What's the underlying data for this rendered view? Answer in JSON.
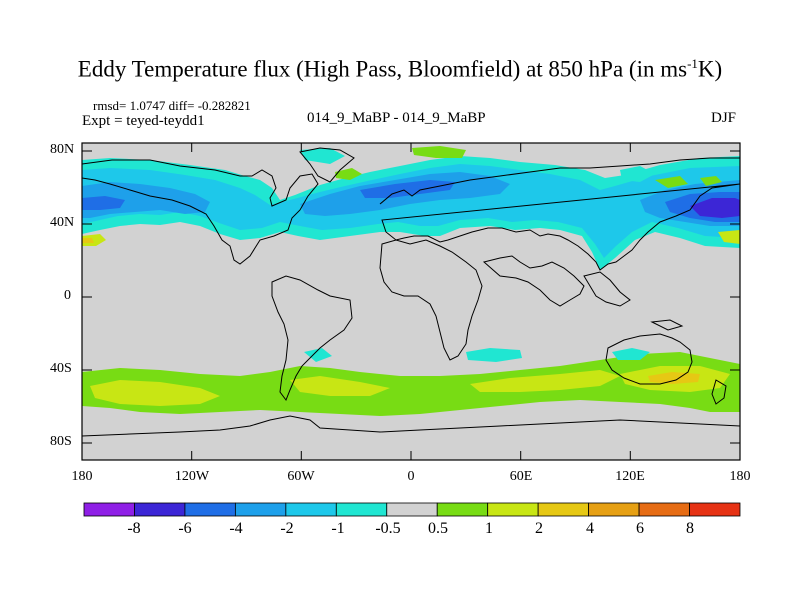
{
  "header": {
    "title_main": "Eddy Temperature flux (High Pass, Bloomfield) at 850 hPa (in ms",
    "title_sup": "-1",
    "title_end": "K)",
    "rmsd_line": "rmsd= 1.0747 diff= -0.282821",
    "expt_line": "Expt = teyed-teydd1",
    "center_label": "014_9_MaBP - 014_9_MaBP",
    "season": "DJF"
  },
  "map": {
    "lat_labels": [
      "80N",
      "40N",
      "0",
      "40S",
      "80S"
    ],
    "lon_labels": [
      "180",
      "120W",
      "60W",
      "0",
      "60E",
      "120E",
      "180"
    ],
    "background_color": "#d2d2d2"
  },
  "colorbar": {
    "colors": [
      "#8f1fe6",
      "#3c26d6",
      "#1f6ee6",
      "#1ea0ea",
      "#1ec8ea",
      "#20e6d2",
      "#d2d2d2",
      "#78dc14",
      "#c8e614",
      "#e6c814",
      "#e6a014",
      "#e66c14",
      "#e63214"
    ],
    "labels": [
      "-8",
      "-6",
      "-4",
      "-2",
      "-1",
      "-0.5",
      "0.5",
      "1",
      "2",
      "4",
      "6",
      "8"
    ]
  }
}
